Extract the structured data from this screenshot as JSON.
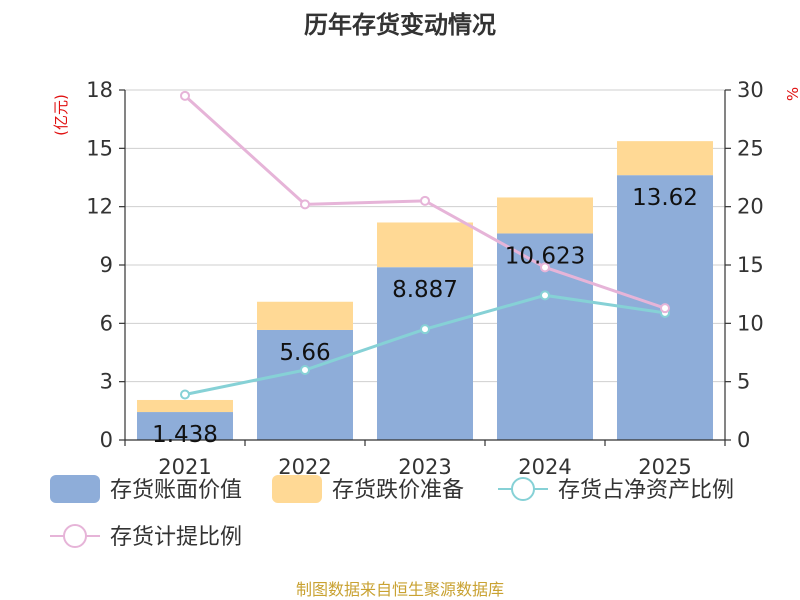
{
  "chart_data": {
    "type": "bar",
    "title": "历年存货变动情况",
    "categories": [
      "2021",
      "2022",
      "2023",
      "2024",
      "2025"
    ],
    "left_axis": {
      "unit": "(亿元)",
      "ylim": [
        0,
        18
      ],
      "ticks": [
        "0",
        "3",
        "6",
        "9",
        "12",
        "15",
        "18"
      ]
    },
    "right_axis": {
      "unit": "%",
      "ylim": [
        0,
        30
      ],
      "ticks": [
        "0",
        "5",
        "10",
        "15",
        "20",
        "25",
        "30"
      ]
    },
    "stacked_series": [
      {
        "name": "存货账面价值",
        "color": "#8eadd9",
        "values": [
          1.438,
          5.66,
          8.887,
          10.623,
          13.62
        ],
        "labels": [
          "1.438",
          "5.66",
          "8.887",
          "10.623",
          "13.62"
        ]
      },
      {
        "name": "存货跌价准备",
        "color": "#ffd995",
        "values": [
          0.62,
          1.45,
          2.3,
          1.85,
          1.75
        ]
      }
    ],
    "line_series": [
      {
        "name": "存货占净资产比例",
        "color": "#86d1d6",
        "axis": "right",
        "values": [
          3.9,
          6.0,
          9.5,
          12.4,
          10.9
        ]
      },
      {
        "name": "存货计提比例",
        "color": "#e6b4d8",
        "axis": "right",
        "values": [
          29.5,
          20.2,
          20.5,
          14.8,
          11.3
        ]
      }
    ],
    "source": "制图数据来自恒生聚源数据库"
  }
}
